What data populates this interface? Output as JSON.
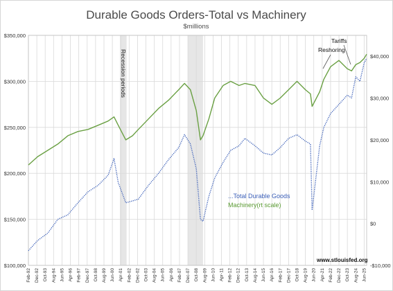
{
  "chart_data": {
    "type": "line",
    "title": "Durable Goods Orders-Total vs Machinery",
    "subtitle": "$millions",
    "grid": true,
    "legend_placement": "center-right",
    "left_axis": {
      "ylim": [
        100000,
        350000
      ],
      "ticks": [
        {
          "value": 100000,
          "label": "$100,000"
        },
        {
          "value": 150000,
          "label": "$150,000"
        },
        {
          "value": 200000,
          "label": "$200,000"
        },
        {
          "value": 250000,
          "label": "$250,000"
        },
        {
          "value": 300000,
          "label": "$300,000"
        },
        {
          "value": 350000,
          "label": "$350,000"
        }
      ]
    },
    "right_axis": {
      "ylim": [
        -10000,
        45000
      ],
      "ticks": [
        {
          "value": -10000,
          "label": "-$10,000"
        },
        {
          "value": 0,
          "label": "$0"
        },
        {
          "value": 10000,
          "label": "$10,000"
        },
        {
          "value": 20000,
          "label": "$20,000"
        },
        {
          "value": 30000,
          "label": "$30,000"
        },
        {
          "value": 40000,
          "label": "$40,000"
        }
      ]
    },
    "x_range": [
      "1992-02",
      "2025-09"
    ],
    "x_ticks": [
      {
        "date": "1992-02",
        "label": "Feb-92"
      },
      {
        "date": "1992-12",
        "label": "Dec-92"
      },
      {
        "date": "1993-10",
        "label": "Oct-93"
      },
      {
        "date": "1994-08",
        "label": "Aug-94"
      },
      {
        "date": "1995-06",
        "label": "Jun-95"
      },
      {
        "date": "1996-04",
        "label": "Apr-96"
      },
      {
        "date": "1997-02",
        "label": "Feb-97"
      },
      {
        "date": "1997-12",
        "label": "Dec-97"
      },
      {
        "date": "1998-10",
        "label": "Oct-98"
      },
      {
        "date": "1999-08",
        "label": "Aug-99"
      },
      {
        "date": "2000-06",
        "label": "Jun-00"
      },
      {
        "date": "2001-04",
        "label": "Apr-01"
      },
      {
        "date": "2002-02",
        "label": "Feb-02"
      },
      {
        "date": "2002-12",
        "label": "Dec-02"
      },
      {
        "date": "2003-10",
        "label": "Oct-03"
      },
      {
        "date": "2004-08",
        "label": "Aug-04"
      },
      {
        "date": "2005-06",
        "label": "Jun-05"
      },
      {
        "date": "2006-04",
        "label": "Apr-06"
      },
      {
        "date": "2007-02",
        "label": "Feb-07"
      },
      {
        "date": "2007-12",
        "label": "Dec-07"
      },
      {
        "date": "2008-10",
        "label": "Oct-08"
      },
      {
        "date": "2009-08",
        "label": "Aug-09"
      },
      {
        "date": "2010-06",
        "label": "Jun-10"
      },
      {
        "date": "2011-04",
        "label": "Apr-11"
      },
      {
        "date": "2012-02",
        "label": "Feb-12"
      },
      {
        "date": "2012-12",
        "label": "Dec-12"
      },
      {
        "date": "2013-10",
        "label": "Oct-13"
      },
      {
        "date": "2014-08",
        "label": "Aug-14"
      },
      {
        "date": "2015-06",
        "label": "Jun-15"
      },
      {
        "date": "2016-04",
        "label": "Apr-16"
      },
      {
        "date": "2017-02",
        "label": "Feb-17"
      },
      {
        "date": "2017-12",
        "label": "Dec-17"
      },
      {
        "date": "2018-10",
        "label": "Oct-18"
      },
      {
        "date": "2019-08",
        "label": "Aug-19"
      },
      {
        "date": "2020-06",
        "label": "Jun-20"
      },
      {
        "date": "2021-04",
        "label": "Apr-21"
      },
      {
        "date": "2022-02",
        "label": "Feb-22"
      },
      {
        "date": "2022-12",
        "label": "Dec-22"
      },
      {
        "date": "2023-10",
        "label": "Oct-23"
      },
      {
        "date": "2024-08",
        "label": "Aug-24"
      },
      {
        "date": "2025-06",
        "label": "Jun-25"
      }
    ],
    "recession_periods": [
      {
        "start": "2001-03",
        "end": "2001-11"
      },
      {
        "start": "2007-12",
        "end": "2009-06"
      }
    ],
    "annotations": {
      "recession_label": "Recession periods",
      "tariffs_label": "Tariffs",
      "reshoring_label": "Reshoring",
      "source": "www.stlouisfed.org"
    },
    "series": [
      {
        "name": "...Total Durable Goods",
        "axis": "left",
        "color": "#3b5fb8",
        "style": "dotted",
        "points": [
          [
            "1992-02",
            116000
          ],
          [
            "1993-01",
            127000
          ],
          [
            "1994-01",
            135000
          ],
          [
            "1995-01",
            150000
          ],
          [
            "1996-01",
            155000
          ],
          [
            "1997-01",
            168000
          ],
          [
            "1998-01",
            180000
          ],
          [
            "1999-01",
            187000
          ],
          [
            "2000-01",
            198000
          ],
          [
            "2000-08",
            216000
          ],
          [
            "2001-01",
            190000
          ],
          [
            "2001-10",
            168000
          ],
          [
            "2002-06",
            170000
          ],
          [
            "2003-01",
            172000
          ],
          [
            "2004-01",
            187000
          ],
          [
            "2005-01",
            200000
          ],
          [
            "2006-01",
            215000
          ],
          [
            "2007-01",
            228000
          ],
          [
            "2007-08",
            242000
          ],
          [
            "2008-03",
            232000
          ],
          [
            "2008-10",
            205000
          ],
          [
            "2009-03",
            150000
          ],
          [
            "2009-06",
            148000
          ],
          [
            "2010-01",
            175000
          ],
          [
            "2010-08",
            195000
          ],
          [
            "2011-06",
            212000
          ],
          [
            "2012-03",
            225000
          ],
          [
            "2013-01",
            230000
          ],
          [
            "2013-08",
            238000
          ],
          [
            "2014-08",
            230000
          ],
          [
            "2015-06",
            222000
          ],
          [
            "2016-04",
            220000
          ],
          [
            "2017-02",
            228000
          ],
          [
            "2017-12",
            238000
          ],
          [
            "2018-10",
            242000
          ],
          [
            "2019-08",
            235000
          ],
          [
            "2020-02",
            232000
          ],
          [
            "2020-04",
            160000
          ],
          [
            "2021-01",
            230000
          ],
          [
            "2021-06",
            250000
          ],
          [
            "2022-02",
            265000
          ],
          [
            "2022-12",
            275000
          ],
          [
            "2023-10",
            285000
          ],
          [
            "2024-03",
            282000
          ],
          [
            "2024-08",
            305000
          ],
          [
            "2025-01",
            300000
          ],
          [
            "2025-06",
            320000
          ],
          [
            "2025-09",
            325000
          ]
        ]
      },
      {
        "name": "Machinery(rt scale)",
        "axis": "right",
        "color": "#6aa043",
        "style": "solid",
        "points": [
          [
            "1992-02",
            14000
          ],
          [
            "1993-01",
            16000
          ],
          [
            "1994-01",
            17500
          ],
          [
            "1995-01",
            19000
          ],
          [
            "1996-01",
            21000
          ],
          [
            "1997-01",
            22000
          ],
          [
            "1998-01",
            22500
          ],
          [
            "1999-01",
            23500
          ],
          [
            "2000-01",
            24500
          ],
          [
            "2000-08",
            25500
          ],
          [
            "2001-01",
            23500
          ],
          [
            "2001-10",
            20000
          ],
          [
            "2002-06",
            21000
          ],
          [
            "2003-01",
            22500
          ],
          [
            "2004-01",
            25000
          ],
          [
            "2005-01",
            27500
          ],
          [
            "2006-01",
            29500
          ],
          [
            "2007-01",
            32000
          ],
          [
            "2007-08",
            33500
          ],
          [
            "2008-03",
            32000
          ],
          [
            "2008-10",
            27000
          ],
          [
            "2009-03",
            20000
          ],
          [
            "2009-06",
            21000
          ],
          [
            "2010-01",
            25000
          ],
          [
            "2010-08",
            30000
          ],
          [
            "2011-06",
            33000
          ],
          [
            "2012-03",
            34000
          ],
          [
            "2013-01",
            33000
          ],
          [
            "2013-08",
            33500
          ],
          [
            "2014-08",
            33000
          ],
          [
            "2015-06",
            30000
          ],
          [
            "2016-04",
            28500
          ],
          [
            "2017-02",
            30000
          ],
          [
            "2017-12",
            32000
          ],
          [
            "2018-10",
            34000
          ],
          [
            "2019-08",
            32000
          ],
          [
            "2020-02",
            31000
          ],
          [
            "2020-04",
            28000
          ],
          [
            "2021-01",
            31500
          ],
          [
            "2021-06",
            34500
          ],
          [
            "2022-02",
            37500
          ],
          [
            "2022-12",
            39000
          ],
          [
            "2023-10",
            37000
          ],
          [
            "2024-03",
            36500
          ],
          [
            "2024-08",
            38000
          ],
          [
            "2025-01",
            38500
          ],
          [
            "2025-06",
            39500
          ],
          [
            "2025-09",
            40500
          ]
        ]
      }
    ]
  }
}
